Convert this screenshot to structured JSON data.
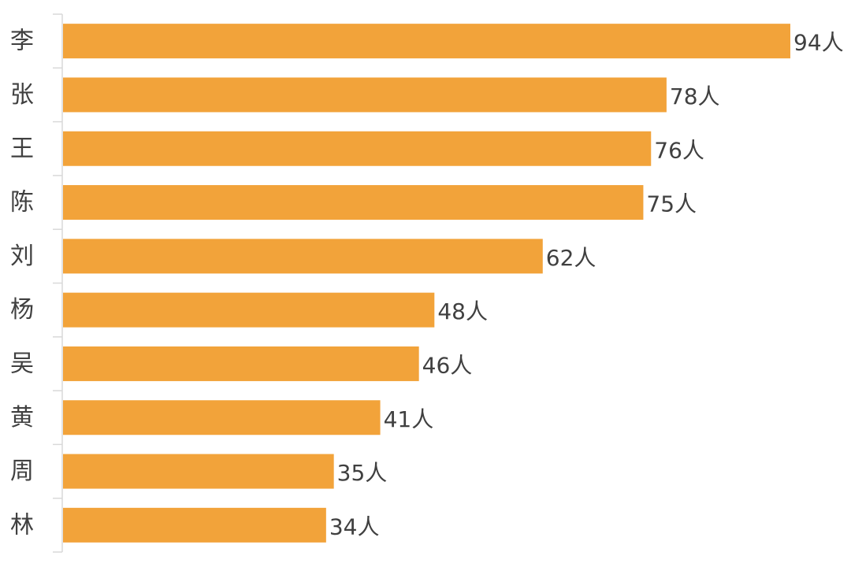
{
  "chart_data": {
    "type": "bar",
    "orientation": "horizontal",
    "categories": [
      "李",
      "张",
      "王",
      "陈",
      "刘",
      "杨",
      "吴",
      "黄",
      "周",
      "林"
    ],
    "values": [
      94,
      78,
      76,
      75,
      62,
      48,
      46,
      41,
      35,
      34
    ],
    "value_labels": [
      "94人",
      "78人",
      "76人",
      "75人",
      "62人",
      "48人",
      "46人",
      "41人",
      "35人",
      "34人"
    ],
    "unit": "人",
    "xlim": [
      0,
      94
    ],
    "grid": false,
    "legend": "none",
    "bar_color": "#F2A33A",
    "axis_color": "#D9D9D9",
    "label_color": "#404040"
  }
}
